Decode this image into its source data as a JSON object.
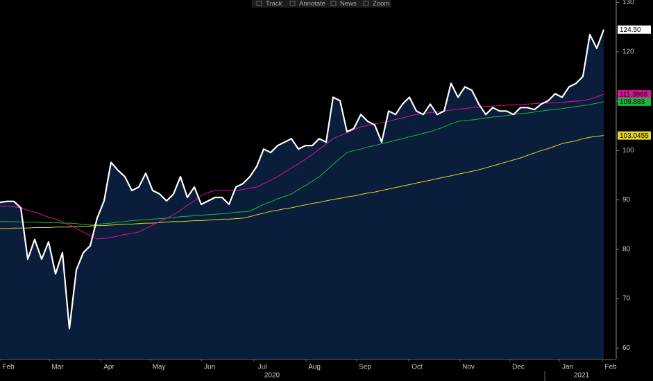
{
  "toolbar": {
    "items": [
      "Track",
      "Annotate",
      "News",
      "Zoom"
    ]
  },
  "chart_data": {
    "type": "line",
    "ylim": [
      57.8,
      130.5
    ],
    "yticks": [
      60,
      70,
      80,
      90,
      100,
      110,
      120,
      130
    ],
    "xticks": [
      "Feb",
      "Mar",
      "Apr",
      "May",
      "Jun",
      "Jul",
      "Aug",
      "Sep",
      "Oct",
      "Nov",
      "Dec",
      "Jan",
      "Feb"
    ],
    "years": [
      "2020",
      "2021"
    ],
    "area_color": "#0a1d3a",
    "series": [
      {
        "color": "#ffffff",
        "area": true,
        "last_value_label": "124.50",
        "values": [
          89.5,
          89.7,
          89.7,
          88.4,
          78,
          82,
          78,
          81.5,
          75,
          79.3,
          63.9,
          75.8,
          79.3,
          80.7,
          86.3,
          89.8,
          97.6,
          96,
          94.7,
          91.9,
          92.6,
          95.4,
          91.9,
          91.2,
          89.8,
          91.2,
          94.7,
          90.5,
          92.6,
          89.1,
          89.8,
          90.5,
          90.5,
          89.1,
          92.6,
          93.3,
          94.7,
          96.8,
          100.3,
          99.6,
          101,
          101.7,
          102.4,
          100.3,
          101,
          101,
          102.4,
          101.7,
          110.8,
          110.1,
          103.8,
          104.5,
          107.3,
          105.9,
          105.2,
          101.7,
          108,
          107.3,
          109.4,
          110.8,
          108,
          107.3,
          109.4,
          107.3,
          108,
          113.6,
          110.8,
          112.9,
          112.2,
          109.4,
          107.3,
          108.7,
          108,
          108,
          107.3,
          108.7,
          108.7,
          108.3,
          109.4,
          110.1,
          111.5,
          110.8,
          112.9,
          113.6,
          115,
          123.5,
          120.7,
          124.5
        ]
      },
      {
        "color": "#e0119a",
        "values": [
          88.8,
          88.7,
          88.6,
          88.4,
          87.9,
          87.5,
          87.0,
          86.5,
          86.1,
          85.6,
          84.9,
          84.2,
          83.5,
          82.8,
          82.1,
          82.2,
          82.4,
          82.7,
          83.0,
          83.2,
          83.5,
          84.2,
          84.9,
          85.6,
          86.3,
          87.0,
          87.9,
          88.9,
          89.8,
          90.9,
          91.5,
          91.9,
          91.9,
          91.9,
          91.9,
          92.1,
          92.4,
          92.6,
          93.3,
          94.0,
          94.7,
          95.6,
          96.5,
          97.3,
          98.2,
          99.2,
          100.3,
          101.3,
          102.4,
          103.0,
          103.6,
          104.2,
          104.8,
          105.1,
          105.4,
          105.6,
          105.9,
          106.3,
          106.6,
          107.0,
          107.3,
          107.5,
          107.7,
          107.8,
          108.0,
          108.2,
          108.4,
          108.5,
          108.7,
          108.8,
          108.9,
          109.0,
          109.1,
          109.2,
          109.3,
          109.3,
          109.4,
          109.5,
          109.6,
          109.6,
          109.7,
          109.8,
          109.9,
          110.0,
          110.1,
          110.4,
          110.9,
          111.3966
        ]
      },
      {
        "color": "#19b83a",
        "values": [
          85.6,
          85.6,
          85.6,
          85.5,
          85.5,
          85.5,
          85.4,
          85.4,
          85.4,
          85.3,
          85.3,
          85.2,
          85.0,
          84.9,
          85.0,
          85.2,
          85.3,
          85.5,
          85.6,
          85.8,
          85.9,
          86.0,
          86.1,
          86.2,
          86.3,
          86.4,
          86.6,
          86.7,
          86.8,
          86.9,
          87.0,
          87.1,
          87.2,
          87.3,
          87.5,
          87.6,
          87.7,
          88.4,
          89.1,
          89.6,
          90.2,
          90.7,
          91.2,
          92.1,
          92.9,
          93.8,
          94.7,
          95.9,
          97.2,
          98.4,
          99.6,
          100.0,
          100.3,
          100.7,
          101.0,
          101.4,
          101.7,
          102.1,
          102.4,
          102.8,
          103.1,
          103.5,
          103.8,
          104.3,
          104.8,
          105.4,
          105.9,
          106.1,
          106.2,
          106.4,
          106.6,
          106.8,
          106.9,
          107.1,
          107.3,
          107.5,
          107.6,
          107.8,
          108.0,
          108.2,
          108.3,
          108.5,
          108.7,
          108.9,
          109.1,
          109.3,
          109.6,
          109.883
        ]
      },
      {
        "color": "#e6d421",
        "values": [
          84.2,
          84.2,
          84.3,
          84.3,
          84.3,
          84.4,
          84.4,
          84.4,
          84.5,
          84.5,
          84.5,
          84.6,
          84.6,
          84.7,
          84.8,
          84.8,
          84.9,
          85.0,
          85.1,
          85.1,
          85.2,
          85.3,
          85.3,
          85.4,
          85.5,
          85.6,
          85.6,
          85.7,
          85.8,
          85.8,
          85.9,
          86.0,
          86.1,
          86.1,
          86.2,
          86.3,
          86.6,
          87.0,
          87.3,
          87.7,
          87.9,
          88.2,
          88.4,
          88.7,
          89.0,
          89.3,
          89.5,
          89.8,
          90.1,
          90.3,
          90.6,
          90.8,
          91.1,
          91.4,
          91.6,
          91.9,
          92.2,
          92.5,
          92.8,
          93.1,
          93.4,
          93.7,
          94.0,
          94.3,
          94.6,
          94.9,
          95.2,
          95.5,
          95.8,
          96.1,
          96.5,
          96.9,
          97.3,
          97.7,
          98.1,
          98.5,
          99.0,
          99.5,
          100.0,
          100.4,
          100.9,
          101.4,
          101.7,
          102.0,
          102.4,
          102.7,
          102.9,
          103.0455
        ]
      }
    ]
  }
}
